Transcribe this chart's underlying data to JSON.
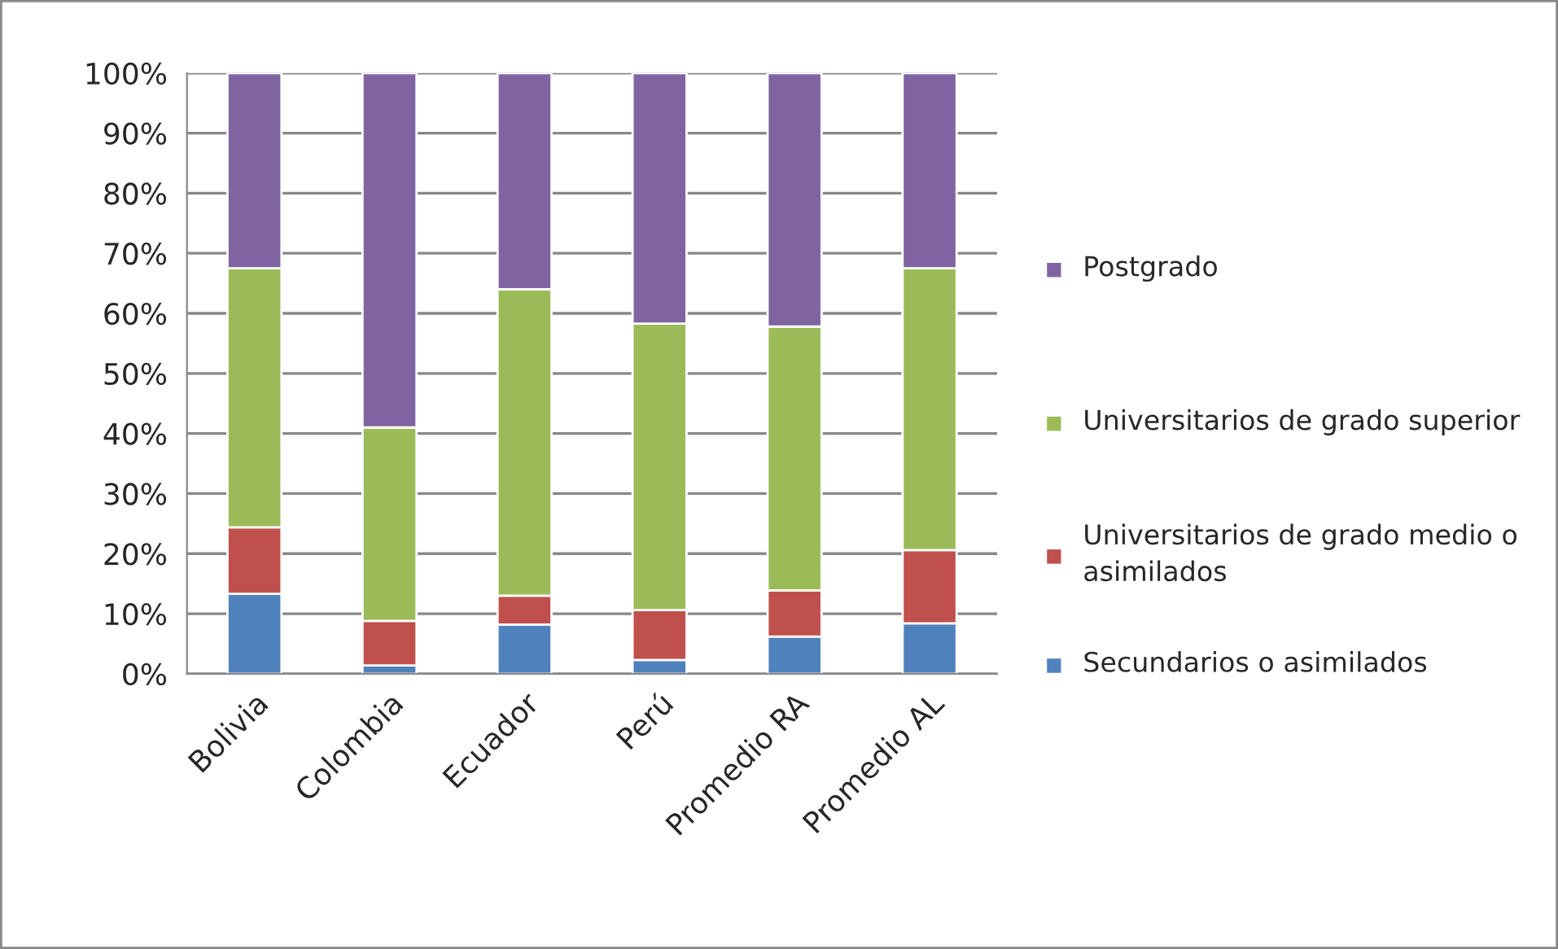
{
  "chart_data": {
    "type": "bar",
    "stacked": true,
    "categories": [
      "Bolivia",
      "Colombia",
      "Ecuador",
      "Perú",
      "Promedio RA",
      "Promedio AL"
    ],
    "series": [
      {
        "name": "Secundarios o asimilados",
        "color": "#4f81bd",
        "values": [
          13.3,
          1.4,
          8.2,
          2.3,
          6.2,
          8.4
        ]
      },
      {
        "name": "Universitarios de grado medio o asimilados",
        "color": "#c0504d",
        "values": [
          11.1,
          7.4,
          4.8,
          8.3,
          7.7,
          12.2
        ]
      },
      {
        "name": "Universitarios de grado superior",
        "color": "#9bbb59",
        "values": [
          43.1,
          32.2,
          51.0,
          47.7,
          43.9,
          46.9
        ]
      },
      {
        "name": "Postgrado",
        "color": "#8064a2",
        "values": [
          32.5,
          59.0,
          36.0,
          41.7,
          42.2,
          32.5
        ]
      }
    ],
    "ylim": [
      0,
      100
    ],
    "yticks": [
      {
        "value": 0,
        "label": "0%"
      },
      {
        "value": 10,
        "label": "10%"
      },
      {
        "value": 20,
        "label": "20%"
      },
      {
        "value": 30,
        "label": "30%"
      },
      {
        "value": 40,
        "label": "40%"
      },
      {
        "value": 50,
        "label": "50%"
      },
      {
        "value": 60,
        "label": "60%"
      },
      {
        "value": 70,
        "label": "70%"
      },
      {
        "value": 80,
        "label": "80%"
      },
      {
        "value": 90,
        "label": "90%"
      },
      {
        "value": 100,
        "label": "100%"
      }
    ],
    "grid": "y",
    "legend": "right"
  }
}
